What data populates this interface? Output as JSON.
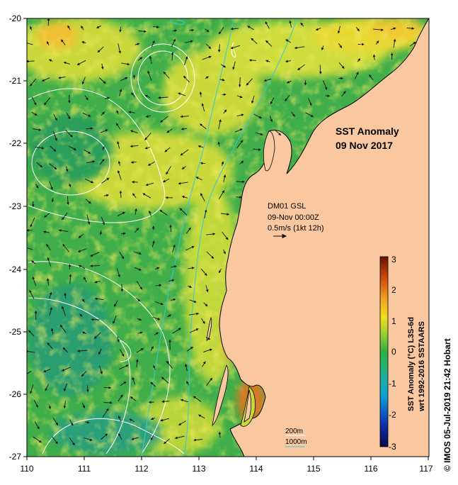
{
  "map": {
    "title_line1": "SST Anomaly",
    "title_line2": "09 Nov 2017",
    "lon_ticks": [
      "110",
      "111",
      "112",
      "113",
      "114",
      "115",
      "116",
      "117"
    ],
    "lat_ticks": [
      "-20",
      "-21",
      "-22",
      "-23",
      "-24",
      "-25",
      "-26",
      "-27"
    ],
    "colors": {
      "land": "#f9c8a0",
      "sea_base": "#3fae4a",
      "contour": "#ffffff",
      "isobath": "#38c8d8",
      "arrow": "#111111"
    }
  },
  "current_info": {
    "station": "DM01 GSL",
    "time": "09-Nov 00:00Z",
    "scale": "0.5m/s (1kt 12h)"
  },
  "isobath_legend": {
    "label_200": "200m",
    "label_1000": "1000m"
  },
  "colorbar": {
    "ticks": [
      "3",
      "2",
      "1",
      "0",
      "-1",
      "-2",
      "-3"
    ],
    "label_line1": "SST Anomaly (°C) L3S-6d",
    "label_line2": "wrt 1992-2016 SSTAARS",
    "range": [
      -3,
      3
    ]
  },
  "credit": "© IMOS 05-Jul-2019 21:42 Hobart"
}
